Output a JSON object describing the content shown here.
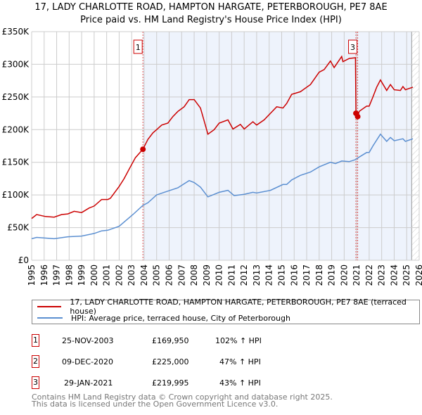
{
  "title": "17, LADY CHARLOTTE ROAD, HAMPTON HARGATE, PETERBOROUGH, PE7 8AE",
  "subtitle": "Price paid vs. HM Land Registry's House Price Index (HPI)",
  "colors": {
    "property": "#cc0000",
    "hpi": "#5b8fd1",
    "shade": "#eef3fc",
    "grid": "#cccccc"
  },
  "chart_data": {
    "type": "line",
    "title": "Price paid vs. HM Land Registry's House Price Index (HPI)",
    "xlim": [
      1995,
      2026
    ],
    "ylim": [
      0,
      350000
    ],
    "x_ticks": [
      "1995",
      "1996",
      "1997",
      "1998",
      "1999",
      "2000",
      "2001",
      "2002",
      "2003",
      "2004",
      "2005",
      "2006",
      "2007",
      "2008",
      "2009",
      "2010",
      "2011",
      "2012",
      "2013",
      "2014",
      "2015",
      "2016",
      "2017",
      "2018",
      "2019",
      "2020",
      "2021",
      "2022",
      "2023",
      "2024",
      "2025",
      "2026"
    ],
    "y_ticks": [
      {
        "v": 0,
        "label": "£0"
      },
      {
        "v": 50000,
        "label": "£50K"
      },
      {
        "v": 100000,
        "label": "£100K"
      },
      {
        "v": 150000,
        "label": "£150K"
      },
      {
        "v": 200000,
        "label": "£200K"
      },
      {
        "v": 250000,
        "label": "£250K"
      },
      {
        "v": 300000,
        "label": "£300K"
      },
      {
        "v": 350000,
        "label": "£350K"
      }
    ],
    "grid": true,
    "shaded_range": [
      2003.9,
      2025.4
    ],
    "hatched_range": [
      2025.4,
      2026
    ],
    "series": [
      {
        "name": "17, LADY CHARLOTTE ROAD, HAMPTON HARGATE, PETERBOROUGH, PE7 8AE (terraced house)",
        "color": "#cc0000",
        "points": [
          [
            1995.0,
            64
          ],
          [
            1995.4,
            70
          ],
          [
            1996.1,
            67
          ],
          [
            1996.8,
            66
          ],
          [
            1997.4,
            70
          ],
          [
            1997.9,
            71
          ],
          [
            1998.4,
            75
          ],
          [
            1999.0,
            73
          ],
          [
            1999.6,
            80
          ],
          [
            2000.0,
            83
          ],
          [
            2000.6,
            93
          ],
          [
            2001.1,
            93
          ],
          [
            2001.3,
            95
          ],
          [
            2002.0,
            113
          ],
          [
            2002.4,
            125
          ],
          [
            2002.9,
            143
          ],
          [
            2003.3,
            157
          ],
          [
            2003.9,
            170
          ],
          [
            2004.3,
            185
          ],
          [
            2004.7,
            195
          ],
          [
            2005.0,
            200
          ],
          [
            2005.4,
            207
          ],
          [
            2005.9,
            210
          ],
          [
            2006.3,
            220
          ],
          [
            2006.7,
            228
          ],
          [
            2007.2,
            235
          ],
          [
            2007.6,
            246
          ],
          [
            2008.0,
            246
          ],
          [
            2008.5,
            233
          ],
          [
            2008.7,
            220
          ],
          [
            2009.1,
            193
          ],
          [
            2009.6,
            200
          ],
          [
            2010.0,
            210
          ],
          [
            2010.7,
            215
          ],
          [
            2011.1,
            201
          ],
          [
            2011.7,
            208
          ],
          [
            2012.0,
            201
          ],
          [
            2012.7,
            212
          ],
          [
            2013.0,
            207
          ],
          [
            2013.6,
            215
          ],
          [
            2014.1,
            225
          ],
          [
            2014.6,
            235
          ],
          [
            2015.1,
            233
          ],
          [
            2015.4,
            240
          ],
          [
            2015.8,
            254
          ],
          [
            2016.5,
            258
          ],
          [
            2017.3,
            269
          ],
          [
            2018.0,
            288
          ],
          [
            2018.4,
            292
          ],
          [
            2018.9,
            305
          ],
          [
            2019.2,
            295
          ],
          [
            2019.8,
            312
          ],
          [
            2019.9,
            304
          ],
          [
            2020.4,
            309
          ],
          [
            2020.9,
            310
          ],
          [
            2020.94,
            225
          ],
          [
            2021.1,
            220
          ],
          [
            2021.2,
            228
          ],
          [
            2021.8,
            236
          ],
          [
            2022.0,
            236
          ],
          [
            2022.3,
            250
          ],
          [
            2022.6,
            265
          ],
          [
            2022.9,
            276
          ],
          [
            2023.4,
            260
          ],
          [
            2023.7,
            269
          ],
          [
            2024.0,
            261
          ],
          [
            2024.5,
            260
          ],
          [
            2024.7,
            266
          ],
          [
            2024.9,
            261
          ],
          [
            2025.5,
            265
          ]
        ]
      },
      {
        "name": "HPI: Average price, terraced house, City of Peterborough",
        "color": "#5b8fd1",
        "points": [
          [
            1995.0,
            33
          ],
          [
            1995.4,
            35
          ],
          [
            1996.8,
            33
          ],
          [
            1997.9,
            36
          ],
          [
            1999.0,
            37
          ],
          [
            2000.0,
            41
          ],
          [
            2000.6,
            45
          ],
          [
            2001.1,
            46
          ],
          [
            2002.0,
            52
          ],
          [
            2003.1,
            70
          ],
          [
            2003.9,
            84
          ],
          [
            2004.3,
            88
          ],
          [
            2005.0,
            100
          ],
          [
            2005.6,
            104
          ],
          [
            2006.7,
            111
          ],
          [
            2007.6,
            122
          ],
          [
            2008.0,
            119
          ],
          [
            2008.5,
            112
          ],
          [
            2009.1,
            97
          ],
          [
            2010.0,
            104
          ],
          [
            2010.7,
            107
          ],
          [
            2011.2,
            99
          ],
          [
            2012.0,
            101
          ],
          [
            2012.7,
            104
          ],
          [
            2013.0,
            103
          ],
          [
            2014.1,
            107
          ],
          [
            2015.1,
            116
          ],
          [
            2015.4,
            116
          ],
          [
            2015.8,
            123
          ],
          [
            2016.5,
            130
          ],
          [
            2017.3,
            135
          ],
          [
            2018.0,
            143
          ],
          [
            2018.9,
            150
          ],
          [
            2019.3,
            148
          ],
          [
            2019.8,
            152
          ],
          [
            2020.4,
            151
          ],
          [
            2020.9,
            154
          ],
          [
            2021.2,
            158
          ],
          [
            2021.8,
            165
          ],
          [
            2022.0,
            165
          ],
          [
            2022.3,
            175
          ],
          [
            2022.9,
            193
          ],
          [
            2023.4,
            182
          ],
          [
            2023.7,
            188
          ],
          [
            2024.0,
            183
          ],
          [
            2024.7,
            186
          ],
          [
            2024.9,
            182
          ],
          [
            2025.5,
            186
          ]
        ]
      }
    ],
    "sales": [
      {
        "label": "1",
        "x": 2003.9,
        "y": 169950,
        "boxed": true
      },
      {
        "label": "2",
        "x": 2020.94,
        "y": 225000,
        "boxed": false
      },
      {
        "label": "3",
        "x": 2021.08,
        "y": 219995,
        "boxed": true
      }
    ]
  },
  "legend": {
    "property": "17, LADY CHARLOTTE ROAD, HAMPTON HARGATE, PETERBOROUGH, PE7 8AE (terraced house)",
    "hpi": "HPI: Average price, terraced house, City of Peterborough"
  },
  "transactions": [
    {
      "num": "1",
      "date": "25-NOV-2003",
      "price": "£169,950",
      "hpi": "102% ↑ HPI"
    },
    {
      "num": "2",
      "date": "09-DEC-2020",
      "price": "£225,000",
      "hpi": "47% ↑ HPI"
    },
    {
      "num": "3",
      "date": "29-JAN-2021",
      "price": "£219,995",
      "hpi": "43% ↑ HPI"
    }
  ],
  "footer": {
    "line1": "Contains HM Land Registry data © Crown copyright and database right 2025.",
    "line2": "This data is licensed under the Open Government Licence v3.0."
  }
}
